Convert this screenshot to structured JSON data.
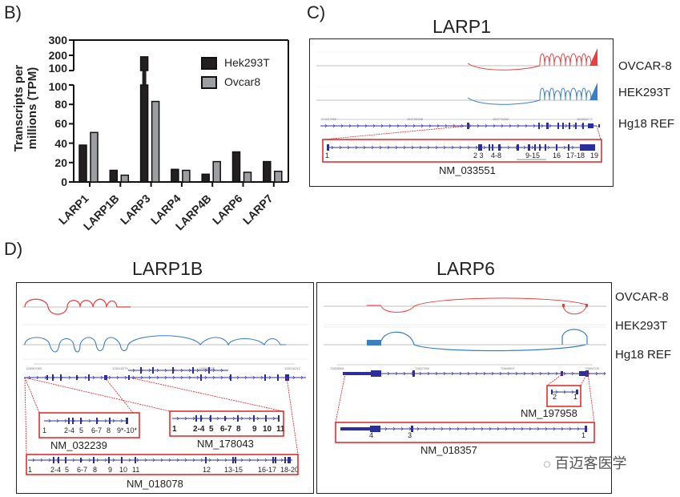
{
  "panels": {
    "b": {
      "label": "B)"
    },
    "c": {
      "label": "C)",
      "title": "LARP1",
      "coords": [
        "154687909",
        "154729496",
        "154771084",
        "154812671"
      ],
      "exons": [
        "1",
        "2 3",
        "4-8",
        "9-15",
        "16",
        "17-18",
        "19"
      ],
      "transcript": "NM_033551"
    },
    "d": {
      "label": "D)",
      "larp1b": {
        "title": "LARP1B",
        "coords": [
          "128067063",
          "128116279",
          "128166495",
          "128216212"
        ],
        "t1": {
          "name": "NM_032239",
          "exons": [
            "1",
            "2-4",
            "5",
            "6-7",
            "8",
            "9*-10*"
          ]
        },
        "t2": {
          "name": "NM_178043",
          "exons": [
            "1",
            "2-4",
            "5",
            "6-7",
            "8",
            "9",
            "10",
            "11"
          ]
        },
        "t3": {
          "name": "NM_018078",
          "exons": [
            "1",
            "2-4",
            "5",
            "6-7",
            "8",
            "9",
            "10",
            "11",
            "12",
            "13-15",
            "16-17",
            "18-20"
          ]
        }
      },
      "larp6": {
        "title": "LARP6",
        "coords": [
          "70828581",
          "70837289",
          "70845997",
          "70854705"
        ],
        "t1": {
          "name": "NM_197958",
          "exons": [
            "2",
            "1"
          ]
        },
        "t2": {
          "name": "NM_018357",
          "exons": [
            "4",
            "3",
            "1"
          ]
        }
      }
    }
  },
  "track_labels": {
    "c": [
      "OVCAR-8",
      "HEK293T",
      "Hg18 REF"
    ],
    "d": [
      "OVCAR-8",
      "HEK293T",
      "Hg18 REF"
    ]
  },
  "watermark": "百迈客医学",
  "colors": {
    "ovcar8_track": "#e8403f",
    "hek_track": "#3a7ec4",
    "gene_model": "#2b2f9e",
    "zoom_box": "#e02020",
    "hek_bar": "#231f20",
    "ovcar_bar": "#9d9ea2"
  },
  "chart_data": {
    "type": "bar",
    "ylabel": "Transcripts per millions (TPM)",
    "categories": [
      "LARP1",
      "LARP1B",
      "LARP3",
      "LARP4",
      "LARP4B",
      "LARP6",
      "LARP7"
    ],
    "series": [
      {
        "name": "Hek293T",
        "values": [
          38,
          12,
          190,
          13,
          8,
          31,
          21
        ]
      },
      {
        "name": "Ovcar8",
        "values": [
          51,
          7,
          83,
          12,
          21,
          10,
          11
        ]
      }
    ],
    "yaxis_broken": true,
    "yticks_lower": [
      "0",
      "20",
      "40",
      "60",
      "80",
      "100"
    ],
    "yticks_upper": [
      "100",
      "200",
      "300"
    ],
    "ylim": [
      0,
      300
    ],
    "legend": "top-right",
    "grid": false
  }
}
